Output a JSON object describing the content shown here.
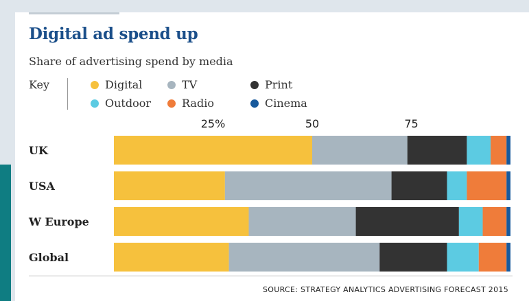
{
  "title": "Digital ad spend up",
  "subtitle": "Share of advertising spend by media",
  "key_label": "Key",
  "source": "SOURCE: STRATEGY ANALYTICS ADVERTISING FORECAST 2015",
  "colors": {
    "Digital": "#f6c13d",
    "TV": "#a7b5bf",
    "Print": "#333333",
    "Outdoor": "#5ccbe2",
    "Radio": "#ef7c3a",
    "Cinema": "#17599c"
  },
  "chart_data": {
    "type": "bar",
    "orientation": "horizontal",
    "stacked": true,
    "title": "Digital ad spend up",
    "subtitle": "Share of advertising spend by media",
    "categories": [
      "UK",
      "USA",
      "W Europe",
      "Global"
    ],
    "tick_labels": [
      "25%",
      "50",
      "75"
    ],
    "xlim": [
      0,
      100
    ],
    "legend_position": "top",
    "series": [
      {
        "name": "Digital",
        "values": [
          50,
          28,
          34,
          29
        ]
      },
      {
        "name": "TV",
        "values": [
          24,
          42,
          27,
          38
        ]
      },
      {
        "name": "Print",
        "values": [
          15,
          14,
          26,
          17
        ]
      },
      {
        "name": "Outdoor",
        "values": [
          6,
          5,
          6,
          8
        ]
      },
      {
        "name": "Radio",
        "values": [
          4,
          10,
          6,
          7
        ]
      },
      {
        "name": "Cinema",
        "values": [
          1,
          1,
          1,
          1
        ]
      }
    ]
  }
}
